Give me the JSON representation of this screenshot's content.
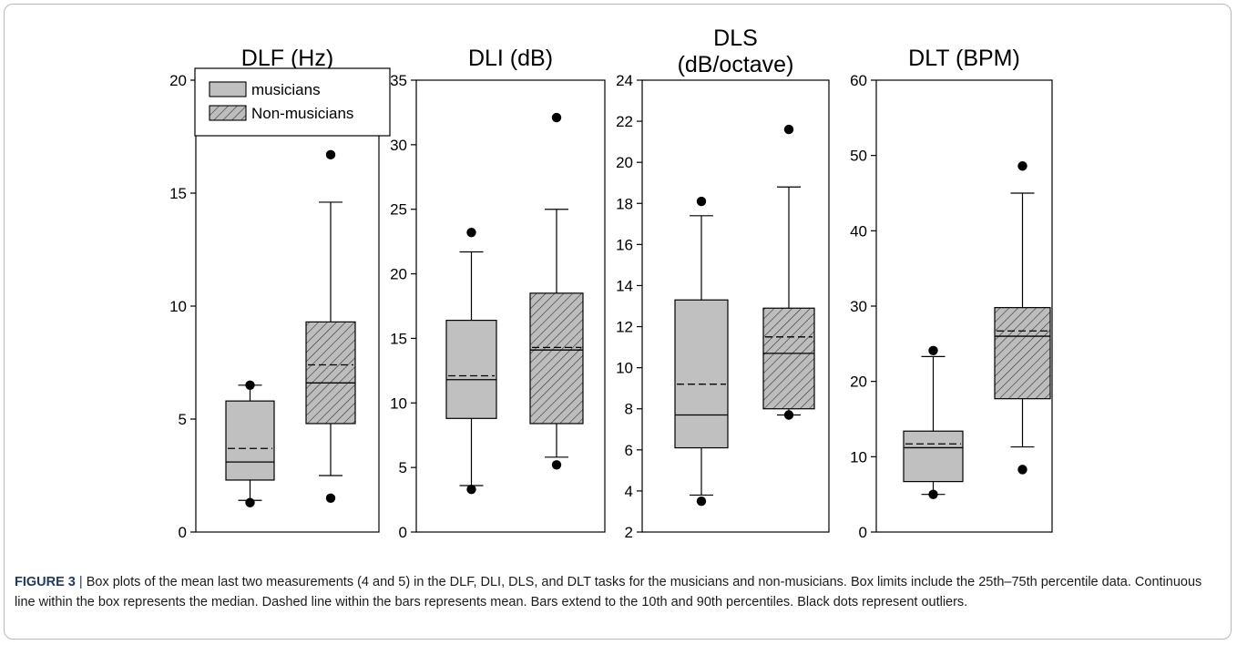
{
  "chart_data": [
    {
      "type": "box",
      "title": "DLF (Hz)",
      "ylim": [
        0,
        20
      ],
      "yticks": [
        0,
        5,
        10,
        15,
        20
      ],
      "legend": {
        "placement": "top-left",
        "entries": [
          {
            "label": "musicians",
            "pattern": "solid-gray"
          },
          {
            "label": "Non-musicians",
            "pattern": "hatched"
          }
        ]
      },
      "groups": [
        {
          "q1": 2.3,
          "median": 3.1,
          "mean": 3.7,
          "q3": 5.8,
          "p10": 1.4,
          "p90": 6.5,
          "outliers": [
            1.3,
            6.5
          ]
        },
        {
          "q1": 4.8,
          "median": 6.6,
          "mean": 7.4,
          "q3": 9.3,
          "p10": 2.5,
          "p90": 14.6,
          "outliers": [
            1.5,
            16.7
          ]
        }
      ]
    },
    {
      "type": "box",
      "title": "DLI (dB)",
      "ylim": [
        0,
        35
      ],
      "yticks": [
        0,
        5,
        10,
        15,
        20,
        25,
        30,
        35
      ],
      "groups": [
        {
          "q1": 8.8,
          "median": 11.8,
          "mean": 12.1,
          "q3": 16.4,
          "p10": 3.6,
          "p90": 21.7,
          "outliers": [
            3.3,
            23.2
          ]
        },
        {
          "q1": 8.4,
          "median": 14.1,
          "mean": 14.3,
          "q3": 18.5,
          "p10": 5.8,
          "p90": 25.0,
          "outliers": [
            5.2,
            32.1
          ]
        }
      ]
    },
    {
      "type": "box",
      "title": "DLS\n(dB/octave)",
      "ylim": [
        2,
        24
      ],
      "yticks": [
        2,
        4,
        6,
        8,
        10,
        12,
        14,
        16,
        18,
        20,
        22,
        24
      ],
      "groups": [
        {
          "q1": 6.1,
          "median": 7.7,
          "mean": 9.2,
          "q3": 13.3,
          "p10": 3.8,
          "p90": 17.4,
          "outliers": [
            3.5,
            18.1
          ]
        },
        {
          "q1": 8.0,
          "median": 10.7,
          "mean": 11.5,
          "q3": 12.9,
          "p10": 7.7,
          "p90": 18.8,
          "outliers": [
            7.7,
            21.6
          ]
        }
      ]
    },
    {
      "type": "box",
      "title": "DLT (BPM)",
      "ylim": [
        0,
        60
      ],
      "yticks": [
        0,
        10,
        20,
        30,
        40,
        50,
        60
      ],
      "groups": [
        {
          "q1": 6.7,
          "median": 11.2,
          "mean": 11.7,
          "q3": 13.4,
          "p10": 5.0,
          "p90": 23.3,
          "outliers": [
            5.0,
            24.1
          ]
        },
        {
          "q1": 17.7,
          "median": 26.0,
          "mean": 26.7,
          "q3": 29.8,
          "p10": 11.3,
          "p90": 45.0,
          "outliers": [
            8.3,
            48.6
          ]
        }
      ]
    }
  ],
  "caption": {
    "label": "FIGURE 3",
    "separator": "|",
    "text": " Box plots of the mean last two measurements (4 and 5) in the DLF, DLI, DLS, and DLT tasks for the musicians and non-musicians. Box limits include the 25th–75th percentile data. Continuous line within the box represents the median. Dashed line within the bars represents mean. Bars extend to the 10th and 90th percentiles. Black dots represent outliers."
  },
  "colors": {
    "musicians_fill": "#c0c0c0",
    "nonmusicians_fill": "#bdbdbd",
    "ink": "#000000",
    "caption_label": "#1f3a68"
  }
}
